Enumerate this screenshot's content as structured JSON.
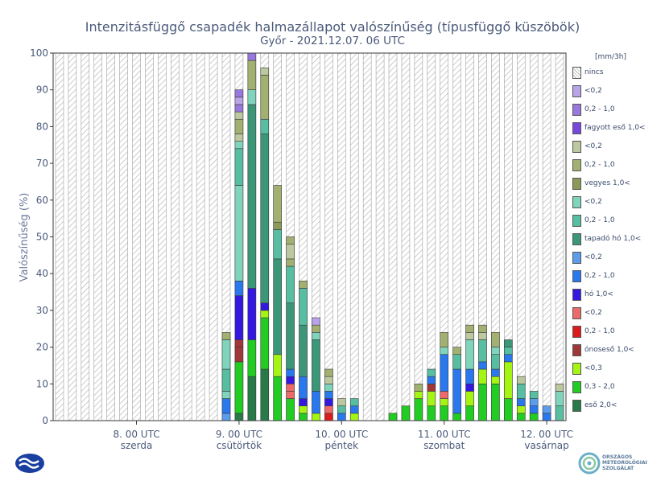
{
  "chart_data": {
    "type": "bar",
    "stacked": true,
    "title": "Intenzitásfüggő csapadék halmazállapot valószínűség (típusfüggő küszöbök)",
    "subtitle": "Győr - 2021.12.07. 06 UTC",
    "ylabel": "Valószínűség (%)",
    "ylim": [
      0,
      100
    ],
    "yticks": [
      0,
      10,
      20,
      30,
      40,
      50,
      60,
      70,
      80,
      90,
      100
    ],
    "n_slots": 40,
    "xticks": [
      {
        "slot": 6.5,
        "label": "8. 00 UTC",
        "day": "szerda"
      },
      {
        "slot": 14.5,
        "label": "9. 00 UTC",
        "day": "csütörtök"
      },
      {
        "slot": 22.5,
        "label": "10. 00 UTC",
        "day": "péntek"
      },
      {
        "slot": 30.5,
        "label": "11. 00 UTC",
        "day": "szombat"
      },
      {
        "slot": 38.5,
        "label": "12. 00 UTC",
        "day": "vasárnap"
      }
    ],
    "legend_unit": "[mm/3h]",
    "categories": [
      {
        "key": "nincs",
        "label": "nincs",
        "color": "#ffffff",
        "hatch": true
      },
      {
        "key": "fz_lt02",
        "label": "<0,2",
        "color": "#b8a4e8"
      },
      {
        "key": "fz_02_10",
        "label": "0,2 - 1,0",
        "color": "#9878dc"
      },
      {
        "key": "fz_gt10",
        "label": "fagyott eső 1,0<",
        "color": "#7848dc"
      },
      {
        "key": "mx_lt02",
        "label": "<0,2",
        "color": "#bcc8a0"
      },
      {
        "key": "mx_02_10",
        "label": "0,2 - 1,0",
        "color": "#a2b072"
      },
      {
        "key": "mx_gt10",
        "label": "vegyes 1,0<",
        "color": "#8a9a58"
      },
      {
        "key": "sn_lt02",
        "label": "<0,2",
        "color": "#80d4bc"
      },
      {
        "key": "sn_02_10",
        "label": "0,2 - 1,0",
        "color": "#58bea2"
      },
      {
        "key": "sn_gt10",
        "label": "tapadó hó 1,0<",
        "color": "#3c9678"
      },
      {
        "key": "sw_lt02",
        "label": "<0,2",
        "color": "#5c9cec"
      },
      {
        "key": "sw_02_10",
        "label": "0,2 - 1,0",
        "color": "#2a78ee"
      },
      {
        "key": "sw_gt10",
        "label": "hó 1,0<",
        "color": "#3418e0"
      },
      {
        "key": "fr_lt02",
        "label": "<0,2",
        "color": "#ec6a6a"
      },
      {
        "key": "fr_02_10",
        "label": "0,2 - 1,0",
        "color": "#dc1c1c"
      },
      {
        "key": "fr_gt10",
        "label": "ónoseső 1,0<",
        "color": "#a03838"
      },
      {
        "key": "rn_lt03",
        "label": "<0,3",
        "color": "#a4f414"
      },
      {
        "key": "rn_03_20",
        "label": "0,3 - 2,0",
        "color": "#22cc22"
      },
      {
        "key": "rn_gt20",
        "label": "eső 2,0<",
        "color": "#287a48"
      }
    ],
    "bars": [
      {
        "slot": 13,
        "segments": [
          [
            "sw_lt02",
            2
          ],
          [
            "sw_02_10",
            4
          ],
          [
            "sn_lt02",
            2
          ],
          [
            "sn_02_10",
            6
          ],
          [
            "sn_lt02",
            8
          ],
          [
            "mx_02_10",
            2
          ]
        ]
      },
      {
        "slot": 14,
        "segments": [
          [
            "rn_gt20",
            2
          ],
          [
            "rn_03_20",
            14
          ],
          [
            "fr_gt10",
            4
          ],
          [
            "fr_gt10",
            2
          ],
          [
            "sw_gt10",
            12
          ],
          [
            "sw_02_10",
            4
          ],
          [
            "sn_lt02",
            26
          ],
          [
            "sn_02_10",
            10
          ],
          [
            "sn_lt02",
            2
          ],
          [
            "mx_lt02",
            2
          ],
          [
            "mx_02_10",
            4
          ],
          [
            "mx_lt02",
            2
          ],
          [
            "fz_02_10",
            2
          ],
          [
            "fz_lt02",
            2
          ],
          [
            "fz_02_10",
            2
          ]
        ]
      },
      {
        "slot": 15,
        "segments": [
          [
            "rn_gt20",
            12
          ],
          [
            "rn_03_20",
            10
          ],
          [
            "sw_gt10",
            14
          ],
          [
            "sn_gt10",
            50
          ],
          [
            "sn_lt02",
            4
          ],
          [
            "mx_02_10",
            8
          ],
          [
            "fz_02_10",
            2
          ]
        ]
      },
      {
        "slot": 16,
        "segments": [
          [
            "rn_gt20",
            14
          ],
          [
            "rn_03_20",
            14
          ],
          [
            "rn_lt03",
            2
          ],
          [
            "sw_gt10",
            2
          ],
          [
            "sn_gt10",
            46
          ],
          [
            "sn_02_10",
            4
          ],
          [
            "mx_02_10",
            12
          ],
          [
            "mx_lt02",
            2
          ]
        ]
      },
      {
        "slot": 17,
        "segments": [
          [
            "rn_03_20",
            12
          ],
          [
            "rn_lt03",
            6
          ],
          [
            "sn_gt10",
            26
          ],
          [
            "sn_02_10",
            8
          ],
          [
            "mx_gt10",
            2
          ],
          [
            "mx_02_10",
            10
          ]
        ]
      },
      {
        "slot": 18,
        "segments": [
          [
            "rn_03_20",
            6
          ],
          [
            "fr_lt02",
            2
          ],
          [
            "fr_lt02",
            2
          ],
          [
            "sw_gt10",
            2
          ],
          [
            "sw_02_10",
            2
          ],
          [
            "sn_gt10",
            18
          ],
          [
            "sn_02_10",
            10
          ],
          [
            "mx_02_10",
            2
          ],
          [
            "mx_lt02",
            4
          ],
          [
            "mx_02_10",
            2
          ]
        ]
      },
      {
        "slot": 19,
        "segments": [
          [
            "rn_03_20",
            2
          ],
          [
            "rn_lt03",
            2
          ],
          [
            "sw_gt10",
            2
          ],
          [
            "sw_02_10",
            6
          ],
          [
            "sn_gt10",
            14
          ],
          [
            "sn_02_10",
            10
          ],
          [
            "mx_02_10",
            2
          ]
        ]
      },
      {
        "slot": 20,
        "segments": [
          [
            "rn_lt03",
            2
          ],
          [
            "sw_02_10",
            6
          ],
          [
            "sn_gt10",
            14
          ],
          [
            "sn_lt02",
            2
          ],
          [
            "mx_02_10",
            2
          ],
          [
            "fz_lt02",
            2
          ]
        ]
      },
      {
        "slot": 21,
        "segments": [
          [
            "fr_02_10",
            2
          ],
          [
            "fr_lt02",
            2
          ],
          [
            "sw_gt10",
            2
          ],
          [
            "sw_02_10",
            2
          ],
          [
            "sn_lt02",
            2
          ],
          [
            "mx_lt02",
            2
          ],
          [
            "mx_02_10",
            2
          ]
        ]
      },
      {
        "slot": 22,
        "segments": [
          [
            "sw_02_10",
            2
          ],
          [
            "sn_02_10",
            2
          ],
          [
            "mx_lt02",
            2
          ]
        ]
      },
      {
        "slot": 23,
        "segments": [
          [
            "rn_lt03",
            2
          ],
          [
            "sw_02_10",
            2
          ],
          [
            "sn_02_10",
            2
          ]
        ]
      },
      {
        "slot": 26,
        "segments": [
          [
            "rn_03_20",
            2
          ]
        ]
      },
      {
        "slot": 27,
        "segments": [
          [
            "rn_03_20",
            4
          ]
        ]
      },
      {
        "slot": 28,
        "segments": [
          [
            "rn_03_20",
            6
          ],
          [
            "rn_lt03",
            2
          ],
          [
            "mx_02_10",
            2
          ]
        ]
      },
      {
        "slot": 29,
        "segments": [
          [
            "rn_03_20",
            4
          ],
          [
            "rn_lt03",
            4
          ],
          [
            "fr_gt10",
            2
          ],
          [
            "sw_02_10",
            2
          ],
          [
            "sn_02_10",
            2
          ]
        ]
      },
      {
        "slot": 30,
        "segments": [
          [
            "rn_03_20",
            4
          ],
          [
            "rn_lt03",
            2
          ],
          [
            "fr_lt02",
            2
          ],
          [
            "sw_02_10",
            10
          ],
          [
            "sn_lt02",
            2
          ],
          [
            "mx_02_10",
            4
          ]
        ]
      },
      {
        "slot": 31,
        "segments": [
          [
            "rn_03_20",
            2
          ],
          [
            "sw_02_10",
            12
          ],
          [
            "sn_02_10",
            4
          ],
          [
            "mx_02_10",
            2
          ]
        ]
      },
      {
        "slot": 32,
        "segments": [
          [
            "rn_03_20",
            4
          ],
          [
            "rn_lt03",
            4
          ],
          [
            "sw_gt10",
            2
          ],
          [
            "sw_02_10",
            4
          ],
          [
            "sn_lt02",
            8
          ],
          [
            "mx_lt02",
            2
          ],
          [
            "mx_02_10",
            2
          ]
        ]
      },
      {
        "slot": 33,
        "segments": [
          [
            "rn_03_20",
            10
          ],
          [
            "rn_lt03",
            4
          ],
          [
            "sw_02_10",
            2
          ],
          [
            "sn_02_10",
            6
          ],
          [
            "mx_lt02",
            2
          ],
          [
            "mx_02_10",
            2
          ]
        ]
      },
      {
        "slot": 34,
        "segments": [
          [
            "rn_03_20",
            10
          ],
          [
            "rn_lt03",
            2
          ],
          [
            "sw_02_10",
            2
          ],
          [
            "sn_02_10",
            4
          ],
          [
            "sn_lt02",
            2
          ],
          [
            "mx_02_10",
            4
          ]
        ]
      },
      {
        "slot": 35,
        "segments": [
          [
            "rn_03_20",
            6
          ],
          [
            "rn_lt03",
            10
          ],
          [
            "sw_02_10",
            2
          ],
          [
            "sn_02_10",
            2
          ],
          [
            "sn_gt10",
            2
          ]
        ]
      },
      {
        "slot": 36,
        "segments": [
          [
            "rn_03_20",
            2
          ],
          [
            "rn_lt03",
            2
          ],
          [
            "sw_02_10",
            2
          ],
          [
            "sn_02_10",
            4
          ],
          [
            "mx_lt02",
            2
          ]
        ]
      },
      {
        "slot": 37,
        "segments": [
          [
            "rn_03_20",
            2
          ],
          [
            "sw_02_10",
            2
          ],
          [
            "sw_lt02",
            2
          ],
          [
            "sn_02_10",
            2
          ]
        ]
      },
      {
        "slot": 38,
        "segments": [
          [
            "sw_02_10",
            2
          ],
          [
            "sw_lt02",
            2
          ]
        ]
      },
      {
        "slot": 39,
        "segments": [
          [
            "sn_02_10",
            4
          ],
          [
            "sn_lt02",
            4
          ],
          [
            "mx_lt02",
            2
          ]
        ]
      }
    ]
  },
  "logos": {
    "right_text": [
      "ORSZÁGOS",
      "METEOROLÓGIAI",
      "SZOLGÁLAT"
    ]
  }
}
